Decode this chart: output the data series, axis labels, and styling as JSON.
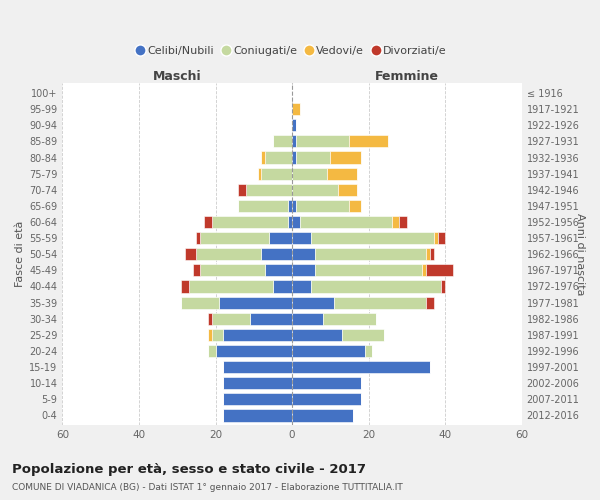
{
  "age_groups": [
    "100+",
    "95-99",
    "90-94",
    "85-89",
    "80-84",
    "75-79",
    "70-74",
    "65-69",
    "60-64",
    "55-59",
    "50-54",
    "45-49",
    "40-44",
    "35-39",
    "30-34",
    "25-29",
    "20-24",
    "15-19",
    "10-14",
    "5-9",
    "0-4"
  ],
  "birth_years": [
    "≤ 1916",
    "1917-1921",
    "1922-1926",
    "1927-1931",
    "1932-1936",
    "1937-1941",
    "1942-1946",
    "1947-1951",
    "1952-1956",
    "1957-1961",
    "1962-1966",
    "1967-1971",
    "1972-1976",
    "1977-1981",
    "1982-1986",
    "1987-1991",
    "1992-1996",
    "1997-2001",
    "2002-2006",
    "2007-2011",
    "2012-2016"
  ],
  "colors": {
    "celibi": "#4472c4",
    "coniugati": "#c5d9a0",
    "vedovi": "#f4b942",
    "divorziati": "#c0392b"
  },
  "maschi": {
    "celibi": [
      0,
      0,
      0,
      0,
      0,
      0,
      0,
      1,
      1,
      6,
      8,
      7,
      5,
      19,
      11,
      18,
      20,
      18,
      18,
      18,
      18
    ],
    "coniugati": [
      0,
      0,
      0,
      5,
      7,
      8,
      12,
      13,
      20,
      18,
      17,
      17,
      22,
      10,
      10,
      3,
      2,
      0,
      0,
      0,
      0
    ],
    "vedovi": [
      0,
      0,
      0,
      0,
      1,
      1,
      0,
      0,
      0,
      0,
      0,
      0,
      0,
      0,
      0,
      1,
      0,
      0,
      0,
      0,
      0
    ],
    "divorziati": [
      0,
      0,
      0,
      0,
      0,
      0,
      2,
      0,
      2,
      1,
      3,
      2,
      2,
      0,
      1,
      0,
      0,
      0,
      0,
      0,
      0
    ]
  },
  "femmine": {
    "celibi": [
      0,
      0,
      1,
      1,
      1,
      0,
      0,
      1,
      2,
      5,
      6,
      6,
      5,
      11,
      8,
      13,
      19,
      36,
      18,
      18,
      16
    ],
    "coniugati": [
      0,
      0,
      0,
      14,
      9,
      9,
      12,
      14,
      24,
      32,
      29,
      28,
      34,
      24,
      14,
      11,
      2,
      0,
      0,
      0,
      0
    ],
    "vedovi": [
      0,
      2,
      0,
      10,
      8,
      8,
      5,
      3,
      2,
      1,
      1,
      1,
      0,
      0,
      0,
      0,
      0,
      0,
      0,
      0,
      0
    ],
    "divorziati": [
      0,
      0,
      0,
      0,
      0,
      0,
      0,
      0,
      2,
      2,
      1,
      7,
      1,
      2,
      0,
      0,
      0,
      0,
      0,
      0,
      0
    ]
  },
  "xlim": 60,
  "title": "Popolazione per età, sesso e stato civile - 2017",
  "subtitle": "COMUNE DI VIADANICA (BG) - Dati ISTAT 1° gennaio 2017 - Elaborazione TUTTITALIA.IT",
  "ylabel_left": "Fasce di età",
  "ylabel_right": "Anni di nascita",
  "xlabel_left": "Maschi",
  "xlabel_right": "Femmine",
  "legend_labels": [
    "Celibi/Nubili",
    "Coniugati/e",
    "Vedovi/e",
    "Divorziati/e"
  ],
  "bg_color": "#f0f0f0",
  "plot_bg_color": "#ffffff"
}
